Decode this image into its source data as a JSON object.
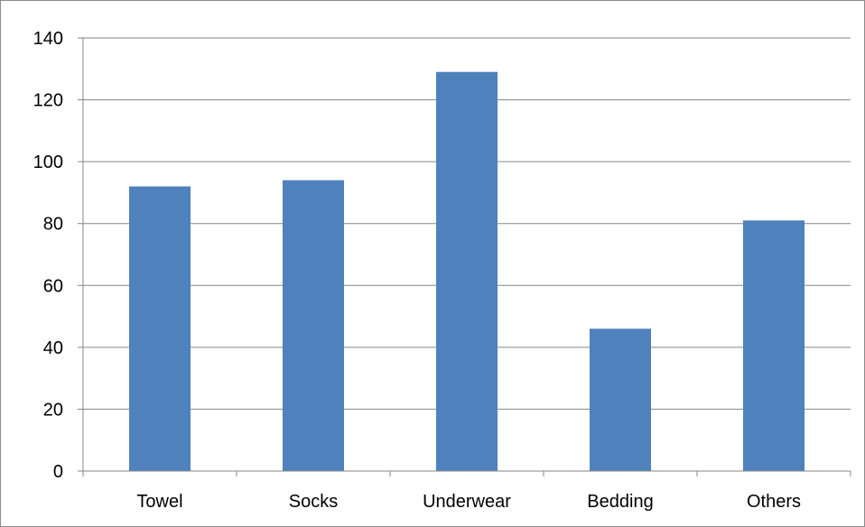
{
  "chart_data": {
    "type": "bar",
    "categories": [
      "Towel",
      "Socks",
      "Underwear",
      "Bedding",
      "Others"
    ],
    "series": [
      {
        "values": [
          92,
          94,
          129,
          46,
          81
        ]
      }
    ],
    "y_ticks": [
      "0",
      "20",
      "40",
      "60",
      "80",
      "100",
      "120",
      "140"
    ],
    "ylim": [
      0,
      140
    ],
    "grid": true,
    "legend": "none",
    "bar_color": "#4f81bd",
    "grid_color": "#868686",
    "axis_color": "#868686"
  }
}
